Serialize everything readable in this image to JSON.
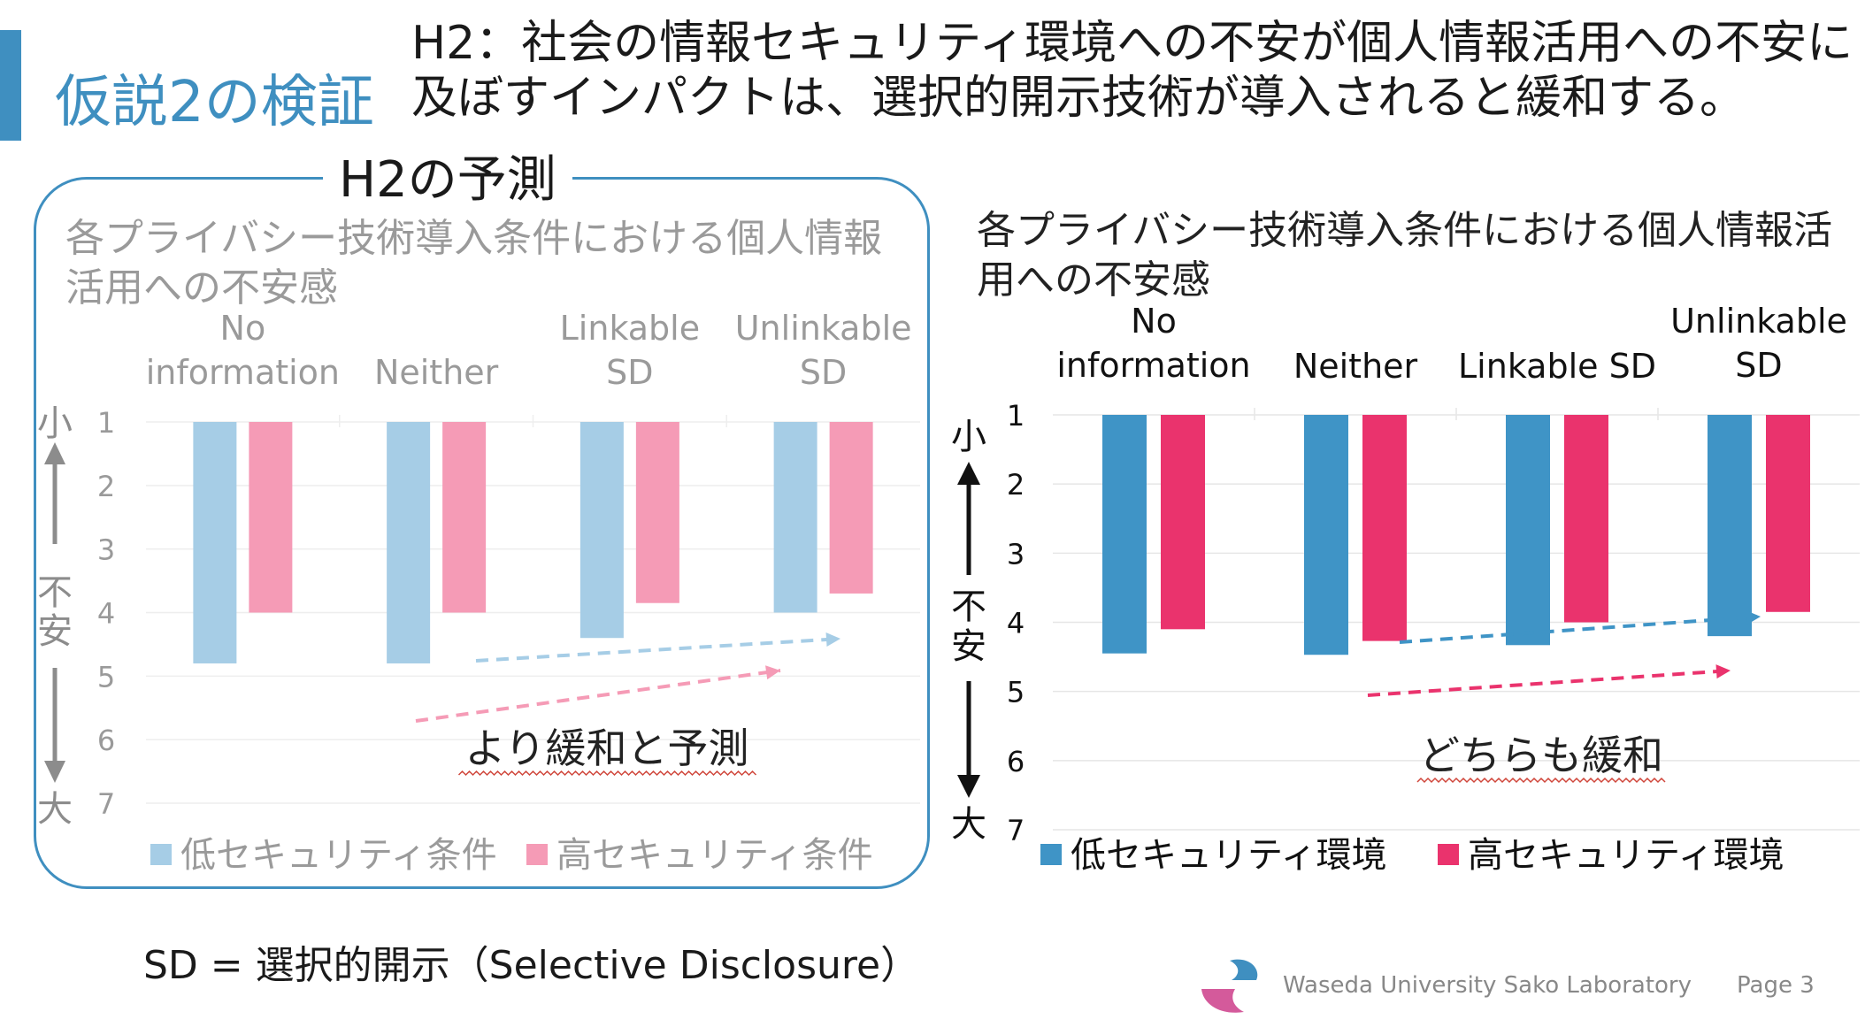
{
  "slide": {
    "title": "仮説2の検証",
    "hypothesis": "H2：社会の情報セキュリティ環境への不安が個人情報活用への不安に及ぼすインパクトは、選択的開示技術が導入されると緩和する。",
    "prediction_label": "H2の予測",
    "footnote": "SD = 選択的開示（Selective Disclosure）",
    "lab_name": "Waseda University Sako Laboratory",
    "page": "Page 3"
  },
  "colors": {
    "accent": "#3f8fc0",
    "pred_low": "#a6cde6",
    "pred_high": "#f59bb6",
    "obs_low": "#3f94c6",
    "obs_high": "#ea336d"
  },
  "scale_labels": {
    "small": "小",
    "anxiety_1": "不",
    "anxiety_2": "安",
    "large": "大"
  },
  "chart_data": [
    {
      "type": "bar",
      "title": "各プライバシー技術導入条件における個人情報活用への不安感",
      "categories": [
        "No information",
        "Neither",
        "Linkable SD",
        "Unlinkable SD"
      ],
      "series": [
        {
          "name": "低セキュリティ条件",
          "values": [
            4.8,
            4.8,
            4.4,
            4.0
          ]
        },
        {
          "name": "高セキュリティ条件",
          "values": [
            4.0,
            4.0,
            3.85,
            3.7
          ]
        }
      ],
      "ylim": [
        1,
        7
      ],
      "y_ticks": [
        1,
        2,
        3,
        4,
        5,
        6,
        7
      ],
      "y_inverted": true,
      "legend": "bottom",
      "grid": true,
      "annotation": "より緩和と予測"
    },
    {
      "type": "bar",
      "title": "各プライバシー技術導入条件における個人情報活用への不安感",
      "categories": [
        "No information",
        "Neither",
        "Linkable SD",
        "Unlinkable SD"
      ],
      "series": [
        {
          "name": "低セキュリティ環境",
          "values": [
            4.45,
            4.47,
            4.33,
            4.2
          ]
        },
        {
          "name": "高セキュリティ環境",
          "values": [
            4.1,
            4.27,
            4.0,
            3.85
          ]
        }
      ],
      "ylim": [
        1,
        7
      ],
      "y_ticks": [
        1,
        2,
        3,
        4,
        5,
        6,
        7
      ],
      "y_inverted": true,
      "legend": "bottom",
      "grid": true,
      "annotation": "どちらも緩和"
    }
  ]
}
